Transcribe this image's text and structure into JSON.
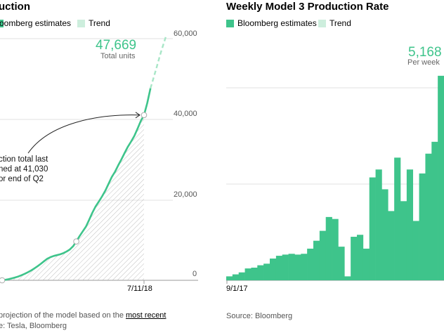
{
  "left_chart": {
    "title": "uction",
    "legend": [
      {
        "label": "oomberg estimates",
        "color": "#3ec48b"
      },
      {
        "label": "Trend",
        "color": "#cdeedd"
      }
    ],
    "y_ticks": [
      "60,000",
      "40,000",
      "20,000",
      "0"
    ],
    "x_tick": "7/11/18",
    "big_value": "47,669",
    "big_caption": "Total units",
    "annotation_lines": [
      "ction total last",
      "ned at 41,030",
      "or end of Q2"
    ],
    "footnote_prefix": "projection of the model based on the ",
    "footnote_link": "most recent",
    "source": "e: Tesla, Bloomberg"
  },
  "right_chart": {
    "title": "Weekly Model 3 Production Rate",
    "legend": [
      {
        "label": "Bloomberg estimates",
        "color": "#3ec48b"
      },
      {
        "label": "Trend",
        "color": "#cdeedd"
      }
    ],
    "x_tick": "9/1/17",
    "big_value": "5,168",
    "big_caption": "Per week",
    "source": "Source: Bloomberg"
  },
  "chart_data": [
    {
      "type": "area",
      "title": "",
      "ylim": [
        0,
        60000
      ],
      "y_ticks": [
        0,
        20000,
        40000,
        60000
      ],
      "series": [
        {
          "name": "Bloomberg estimates",
          "values": [
            0,
            120,
            280,
            480,
            700,
            950,
            1250,
            1600,
            2000,
            2450,
            2950,
            3500,
            4100,
            4750,
            5350,
            5750,
            6050,
            6250,
            6450,
            6750,
            7150,
            7650,
            8450,
            9650,
            10950,
            12150,
            13350,
            15050,
            16800,
            18350,
            19550,
            20850,
            22250,
            23950,
            25650,
            26950,
            28550,
            30050,
            31650,
            33150,
            34450,
            35850,
            37650,
            39550,
            41030,
            44000,
            47669
          ]
        },
        {
          "name": "Trend",
          "values": [
            47669,
            52000,
            56500,
            60500
          ]
        }
      ],
      "annotation": {
        "value": 41030
      },
      "x_label": "7/11/18"
    },
    {
      "type": "bar",
      "title": "Weekly Model 3 Production Rate",
      "series": [
        {
          "name": "Bloomberg estimates",
          "values": [
            100,
            150,
            200,
            300,
            320,
            380,
            420,
            550,
            620,
            650,
            670,
            650,
            670,
            800,
            1000,
            1250,
            1600,
            1550,
            850,
            100,
            1100,
            1150,
            800,
            2600,
            2800,
            2300,
            1750,
            3100,
            2000,
            2800,
            1500,
            2700,
            3200,
            3500,
            5168
          ]
        }
      ],
      "x_label": "9/1/17"
    }
  ]
}
